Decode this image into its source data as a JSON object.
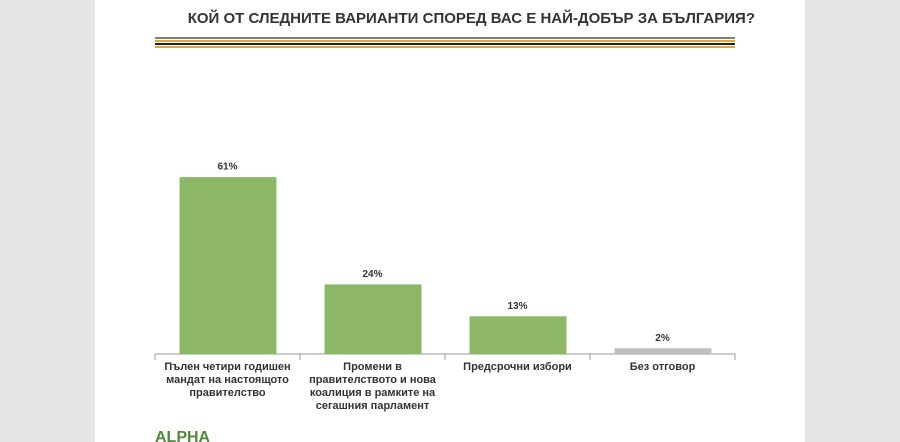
{
  "chart_data": {
    "type": "bar",
    "title": "КОЙ ОТ СЛЕДНИТЕ ВАРИАНТИ СПОРЕД ВАС Е НАЙ-ДОБЪР ЗА БЪЛГАРИЯ?",
    "categories": [
      "Пълен четири годишен мандат на настоящото правителство",
      "Промени в правителството и нова коалиция в рамките на сегашния парламент",
      "Предсрочни избори",
      "Без отговор"
    ],
    "values": [
      61,
      24,
      13,
      2
    ],
    "value_labels": [
      "61%",
      "24%",
      "13%",
      "2%"
    ],
    "colors": [
      "#8cb866",
      "#8cb866",
      "#8cb866",
      "#bfbfbf"
    ]
  },
  "logo": "ALPHA"
}
